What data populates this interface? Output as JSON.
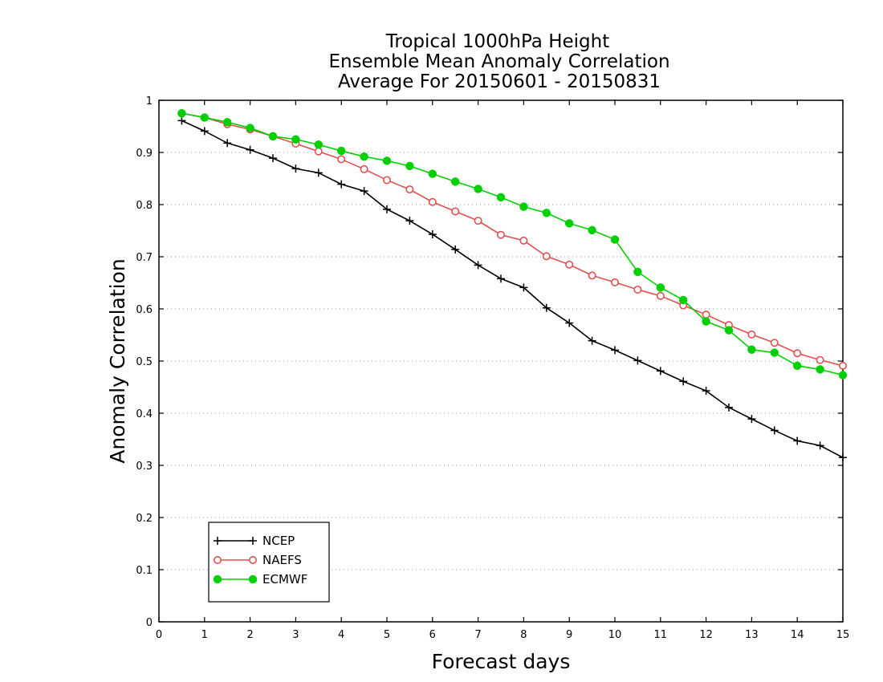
{
  "chart_data": {
    "type": "line",
    "title_lines": [
      "Tropical 1000hPa Height",
      "Ensemble Mean Anomaly Correlation",
      "Average For 20150601 - 20150831"
    ],
    "xlabel": "Forecast days",
    "ylabel": "Anomaly Correlation",
    "xlim": [
      0,
      15
    ],
    "ylim": [
      0,
      1
    ],
    "xticks": [
      0,
      1,
      2,
      3,
      4,
      5,
      6,
      7,
      8,
      9,
      10,
      11,
      12,
      13,
      14,
      15
    ],
    "yticks": [
      0,
      0.1,
      0.2,
      0.3,
      0.4,
      0.5,
      0.6,
      0.7,
      0.8,
      0.9,
      1
    ],
    "ytick_labels": [
      "0",
      "0.1",
      "0.2",
      "0.3",
      "0.4",
      "0.5",
      "0.6",
      "0.7",
      "0.8",
      "0.9",
      "1"
    ],
    "grid": "horizontal dotted",
    "legend_position": "bottom-left",
    "x": [
      0.5,
      1,
      1.5,
      2,
      2.5,
      3,
      3.5,
      4,
      4.5,
      5,
      5.5,
      6,
      6.5,
      7,
      7.5,
      8,
      8.5,
      9,
      9.5,
      10,
      10.5,
      11,
      11.5,
      12,
      12.5,
      13,
      13.5,
      14,
      14.5,
      15
    ],
    "series": [
      {
        "name": "NCEP",
        "color": "#000000",
        "marker": "plus",
        "values": [
          0.961,
          0.941,
          0.918,
          0.905,
          0.889,
          0.869,
          0.861,
          0.839,
          0.826,
          0.791,
          0.769,
          0.743,
          0.714,
          0.684,
          0.658,
          0.641,
          0.602,
          0.573,
          0.539,
          0.521,
          0.501,
          0.481,
          0.461,
          0.443,
          0.411,
          0.389,
          0.367,
          0.347,
          0.338,
          0.315
        ]
      },
      {
        "name": "NAEFS",
        "color": "#e05050",
        "marker": "open-circle",
        "values": [
          0.975,
          0.967,
          0.954,
          0.944,
          0.931,
          0.917,
          0.902,
          0.887,
          0.868,
          0.847,
          0.829,
          0.805,
          0.787,
          0.769,
          0.742,
          0.731,
          0.701,
          0.685,
          0.664,
          0.651,
          0.637,
          0.625,
          0.607,
          0.589,
          0.569,
          0.551,
          0.535,
          0.515,
          0.502,
          0.491
        ]
      },
      {
        "name": "ECMWF",
        "color": "#00d000",
        "marker": "filled-circle",
        "values": [
          0.975,
          0.967,
          0.958,
          0.947,
          0.931,
          0.925,
          0.915,
          0.903,
          0.892,
          0.884,
          0.874,
          0.859,
          0.844,
          0.83,
          0.814,
          0.796,
          0.784,
          0.764,
          0.751,
          0.733,
          0.671,
          0.641,
          0.617,
          0.576,
          0.559,
          0.522,
          0.516,
          0.491,
          0.484,
          0.473
        ]
      }
    ]
  }
}
